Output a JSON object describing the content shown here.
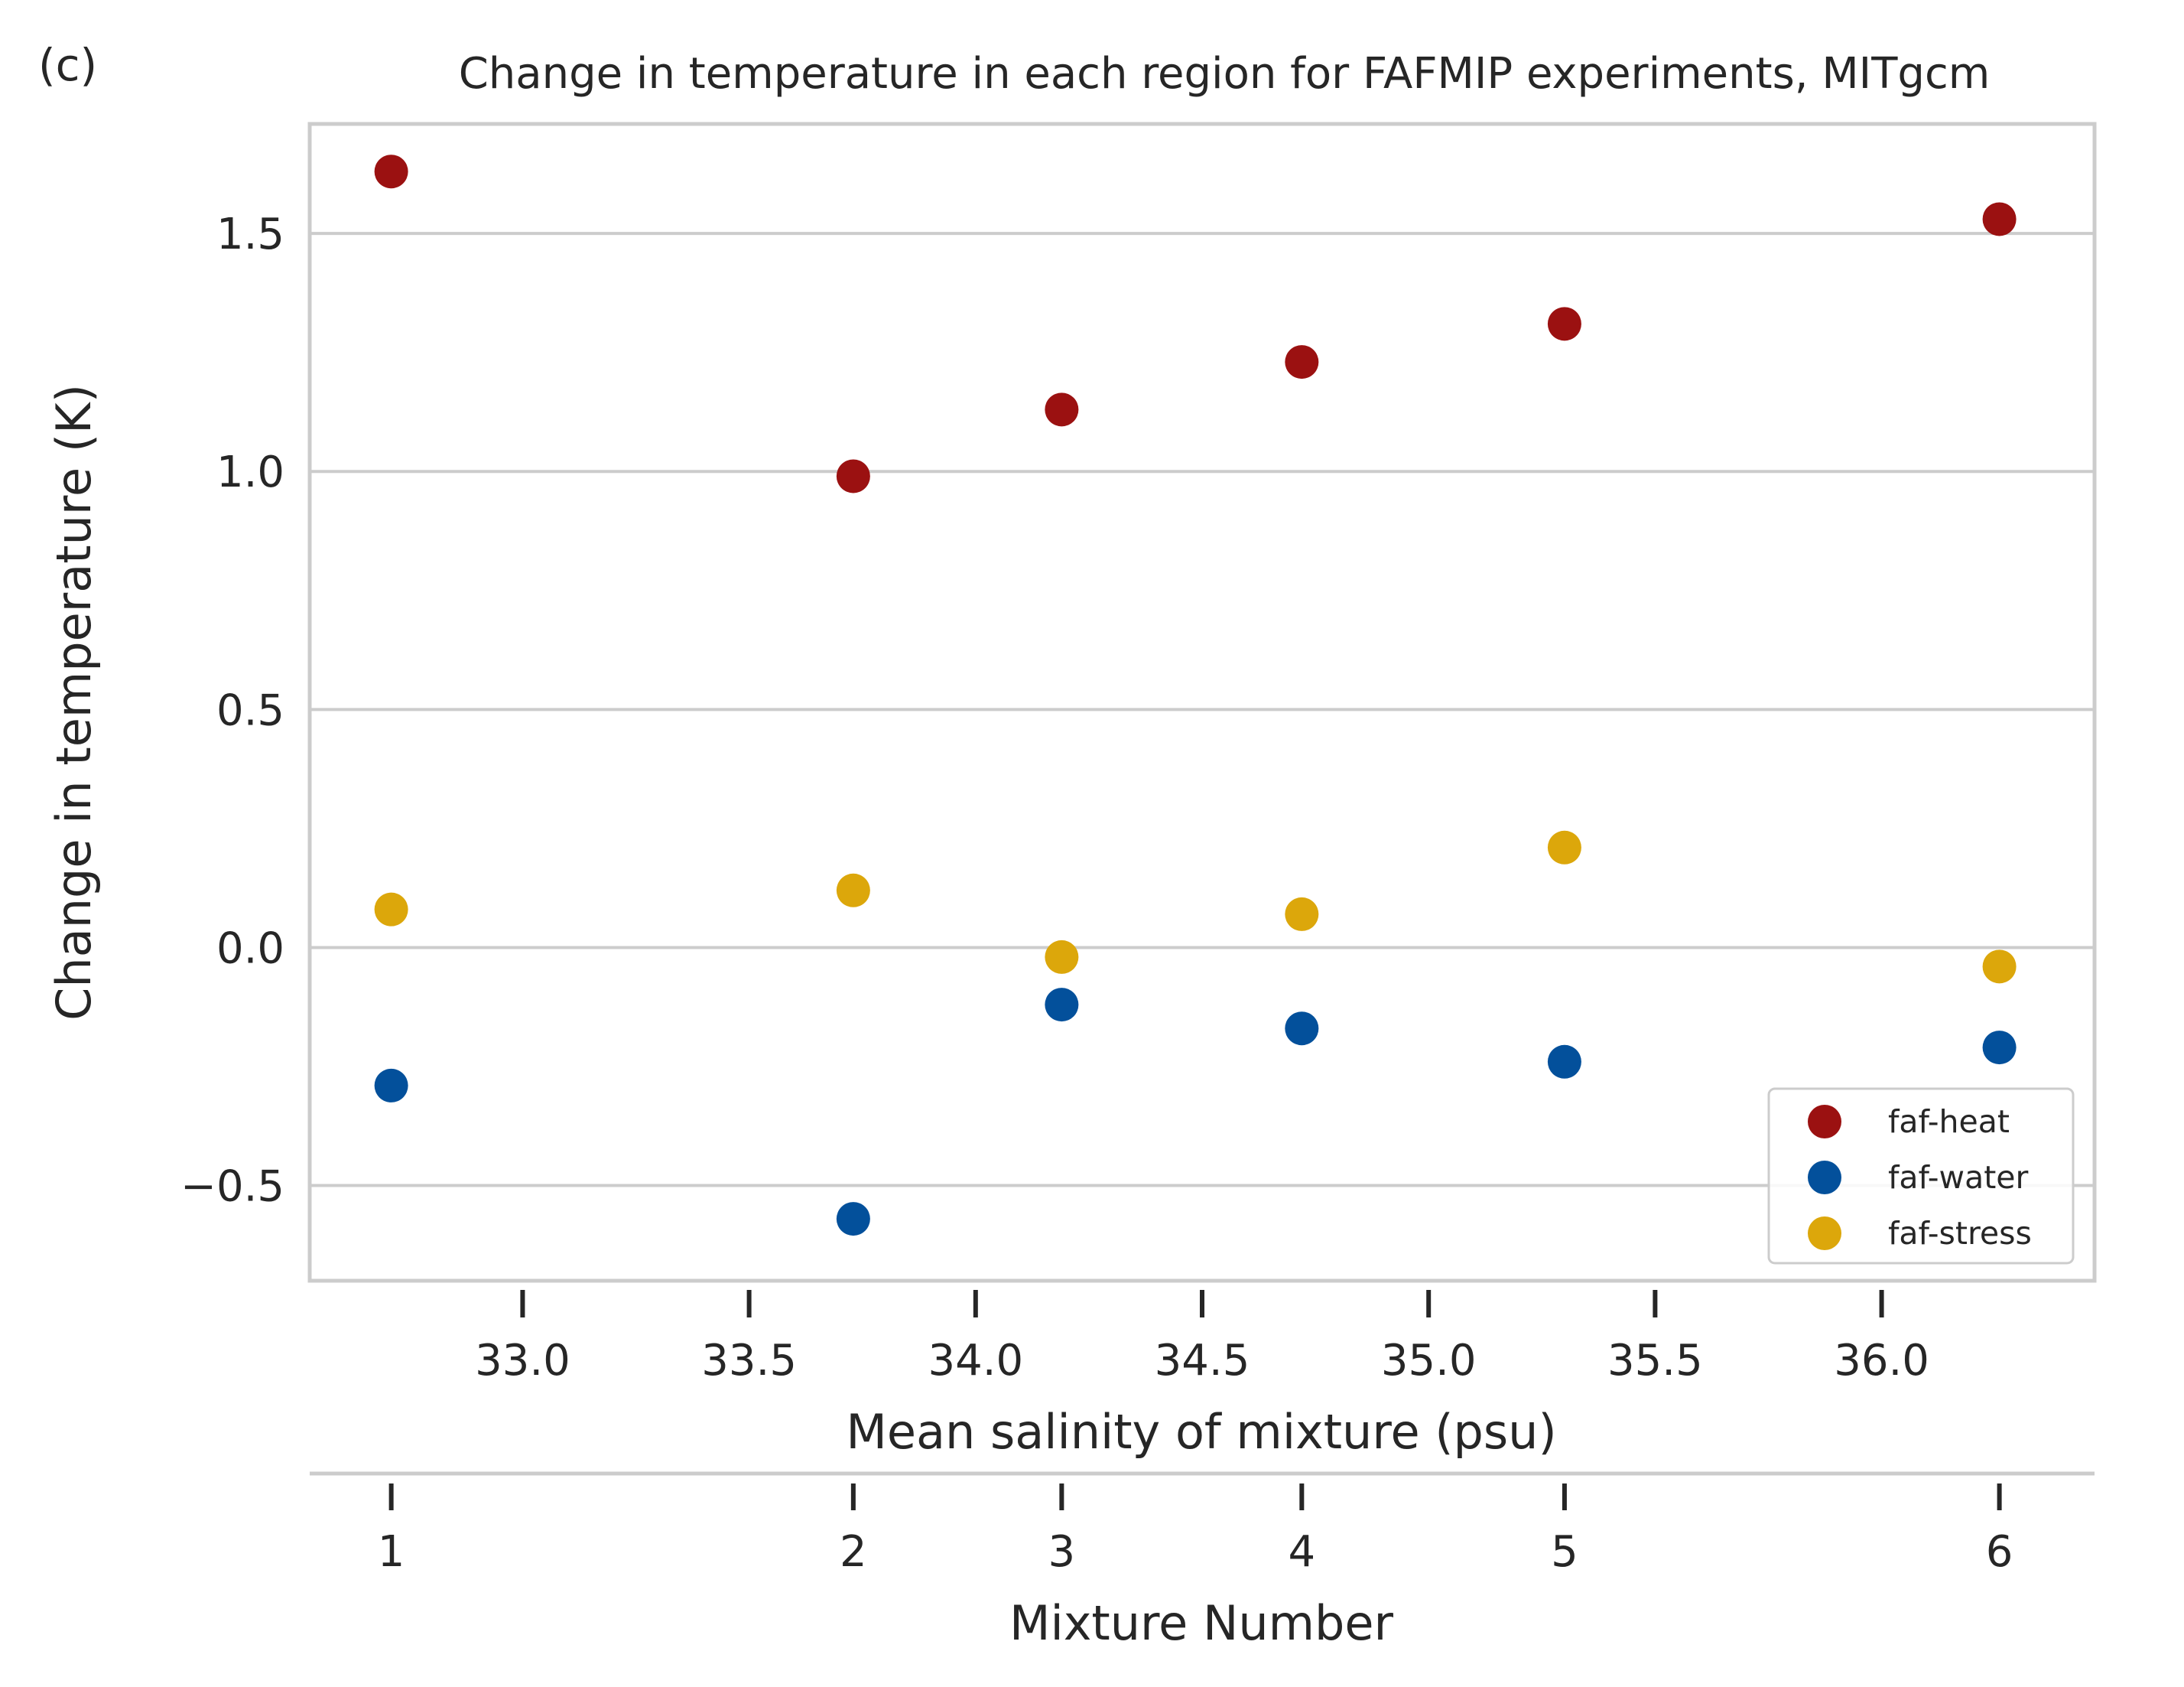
{
  "chart_data": {
    "type": "scatter",
    "panel_label": "(c)",
    "title": "Change in temperature in each region for FAFMIP experiments, MITgcm",
    "ylabel": "Change in temperature (K)",
    "xlabel": "Mean salinity of mixture (psu)",
    "x2label": "Mixture Number",
    "ylim": [
      -0.7,
      1.73
    ],
    "xlim": [
      32.53,
      36.47
    ],
    "yticks": [
      -0.5,
      0.0,
      0.5,
      1.0,
      1.5
    ],
    "ytick_labels": [
      "−0.5",
      "0.0",
      "0.5",
      "1.0",
      "1.5"
    ],
    "xticks": [
      33.0,
      33.5,
      34.0,
      34.5,
      35.0,
      35.5,
      36.0
    ],
    "xtick_labels": [
      "33.0",
      "33.5",
      "34.0",
      "34.5",
      "35.0",
      "35.5",
      "36.0"
    ],
    "x": [
      32.71,
      33.73,
      34.19,
      34.72,
      35.3,
      36.26
    ],
    "x2_ticks": [
      32.71,
      33.73,
      34.19,
      34.72,
      35.3,
      36.26
    ],
    "x2_tick_labels": [
      "1",
      "2",
      "3",
      "4",
      "5",
      "6"
    ],
    "grid": "horizontal",
    "legend_position": "lower-right",
    "series": [
      {
        "name": "faf-heat",
        "color": "#9b1111",
        "values": [
          1.63,
          0.99,
          1.13,
          1.23,
          1.31,
          1.53
        ]
      },
      {
        "name": "faf-water",
        "color": "#03509b",
        "values": [
          -0.29,
          -0.57,
          -0.12,
          -0.17,
          -0.24,
          -0.21
        ]
      },
      {
        "name": "faf-stress",
        "color": "#dca70b",
        "values": [
          0.08,
          0.12,
          -0.02,
          0.07,
          0.21,
          -0.04
        ]
      }
    ]
  }
}
